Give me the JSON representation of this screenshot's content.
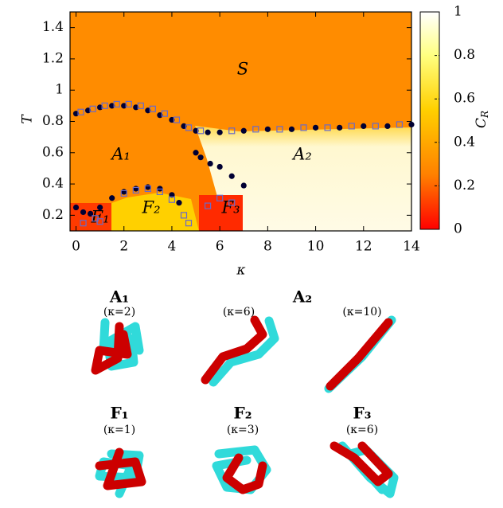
{
  "chart_data": {
    "type": "scatter",
    "xlabel": "κ",
    "ylabel": "T",
    "xlim": [
      -0.25,
      14
    ],
    "ylim": [
      0.1,
      1.5
    ],
    "xticks": [
      0,
      2,
      4,
      6,
      8,
      10,
      12,
      14
    ],
    "yticks": [
      0.2,
      0.4,
      0.6,
      0.8,
      1,
      1.2,
      1.4
    ],
    "regions": [
      "S",
      "A₁",
      "A₂",
      "F₁",
      "F₂",
      "F₃"
    ],
    "colorbar": {
      "label": "C",
      "label_sub": "R",
      "lim": [
        0,
        1
      ],
      "ticks": [
        0,
        0.2,
        0.4,
        0.6,
        0.8,
        1
      ]
    },
    "series": [
      {
        "marker": "circle",
        "color": "#000033",
        "x": [
          0,
          0.5,
          1,
          1.5,
          2,
          2.5,
          3,
          3.5,
          4,
          4.5,
          5,
          5.5,
          6,
          7,
          8,
          9,
          10,
          11,
          12,
          13,
          14,
          5.0,
          5.2,
          5.6,
          6.0,
          6.5,
          7.0,
          1.5,
          2,
          2.5,
          3,
          3.5,
          4,
          4.3,
          0,
          0.3,
          0.6,
          1
        ],
        "values": [
          0.85,
          0.87,
          0.89,
          0.9,
          0.9,
          0.89,
          0.87,
          0.84,
          0.81,
          0.77,
          0.74,
          0.73,
          0.73,
          0.74,
          0.75,
          0.75,
          0.76,
          0.76,
          0.77,
          0.77,
          0.78,
          0.6,
          0.57,
          0.53,
          0.51,
          0.45,
          0.39,
          0.31,
          0.35,
          0.37,
          0.38,
          0.37,
          0.33,
          0.28,
          0.25,
          0.22,
          0.21,
          0.25
        ]
      },
      {
        "marker": "square",
        "color": "#6a6ac8",
        "x": [
          0.2,
          0.7,
          1.2,
          1.7,
          2.2,
          2.7,
          3.2,
          3.7,
          4.2,
          4.7,
          5.2,
          6.5,
          7.5,
          8.5,
          9.5,
          10.5,
          11.5,
          12.5,
          13.5,
          2,
          2.5,
          3,
          3.5,
          4,
          4.5,
          4.7,
          6.0,
          6.5,
          5.5,
          0.3,
          0.8,
          1
        ],
        "values": [
          0.86,
          0.88,
          0.9,
          0.91,
          0.91,
          0.9,
          0.88,
          0.85,
          0.81,
          0.76,
          0.74,
          0.74,
          0.75,
          0.75,
          0.76,
          0.76,
          0.77,
          0.77,
          0.78,
          0.34,
          0.36,
          0.37,
          0.35,
          0.3,
          0.2,
          0.15,
          0.31,
          0.28,
          0.26,
          0.15,
          0.18,
          0.16
        ]
      }
    ]
  },
  "panels": [
    {
      "label": "A₁",
      "kappa": "(κ=2)"
    },
    {
      "label": "A₂",
      "kappa": "(κ=6)"
    },
    {
      "kappa": "(κ=10)"
    },
    {
      "label": "F₁",
      "kappa": "(κ=1)"
    },
    {
      "label": "F₂",
      "kappa": "(κ=3)"
    },
    {
      "label": "F₃",
      "kappa": "(κ=6)"
    }
  ]
}
